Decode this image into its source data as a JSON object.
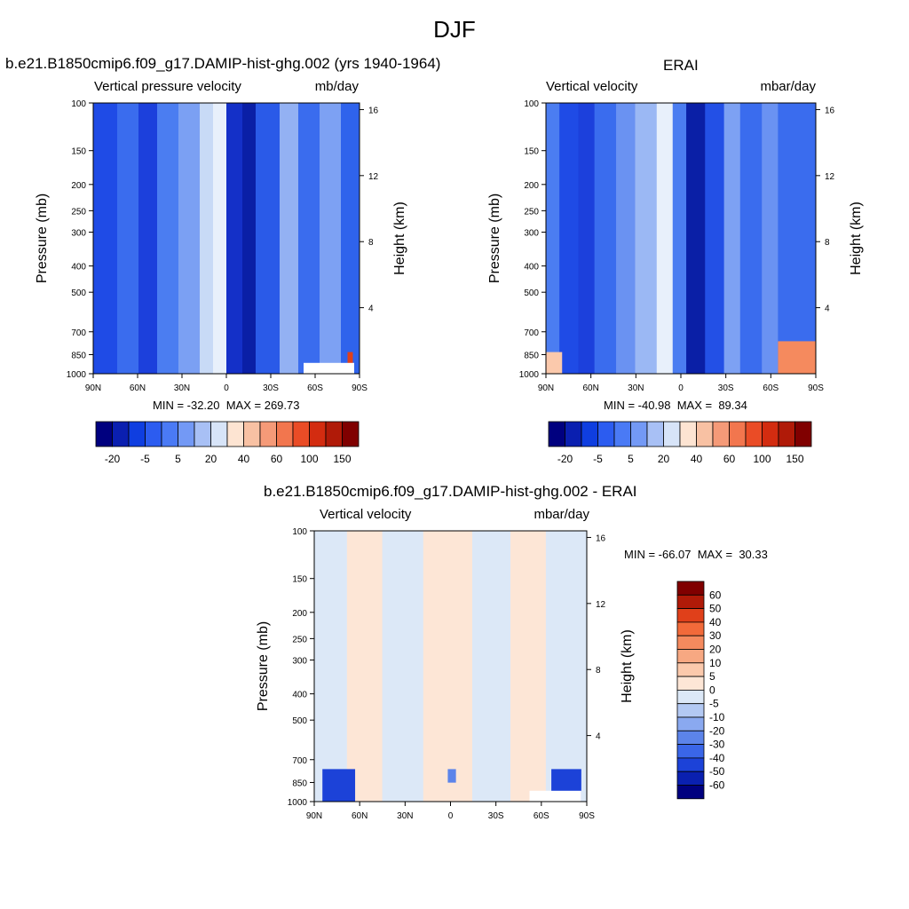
{
  "page": {
    "title": "DJF"
  },
  "chart_data": [
    {
      "type": "heatmap",
      "title": "b.e21.B1850cmip6.f09_g17.DAMIP-hist-ghg.002 (yrs 1940-1964)",
      "left_label": "Vertical pressure velocity",
      "right_label": "mb/day",
      "ylabel": "Pressure (mb)",
      "y2label": "Height (km)",
      "xticks": [
        "90N",
        "60N",
        "30N",
        "0",
        "30S",
        "60S",
        "90S"
      ],
      "yticks": [
        1000,
        850,
        700,
        500,
        400,
        300,
        250,
        200,
        150,
        100
      ],
      "y2ticks": [
        4,
        8,
        12,
        16
      ],
      "stats": "MIN = -32.20  MAX = 269.73",
      "min": -32.2,
      "max": 269.73,
      "colorbar": {
        "labels": [
          "-20",
          "-5",
          "5",
          "20",
          "40",
          "60",
          "100",
          "150"
        ],
        "colors": [
          "#00007f",
          "#0a1fb0",
          "#0f3ee0",
          "#2c5cf0",
          "#4a7af5",
          "#7399f5",
          "#a8c0f5",
          "#d7e4f8",
          "#fde4d2",
          "#f8c1a3",
          "#f59a78",
          "#f2764e",
          "#ea4c26",
          "#d32c10",
          "#b01a08",
          "#800000"
        ]
      }
    },
    {
      "type": "heatmap",
      "title": "ERAI",
      "left_label": "Vertical velocity",
      "right_label": "mbar/day",
      "ylabel": "Pressure (mb)",
      "y2label": "Height (km)",
      "xticks": [
        "90N",
        "60N",
        "30N",
        "0",
        "30S",
        "60S",
        "90S"
      ],
      "yticks": [
        1000,
        850,
        700,
        500,
        400,
        300,
        250,
        200,
        150,
        100
      ],
      "y2ticks": [
        4,
        8,
        12,
        16
      ],
      "stats": "MIN = -40.98  MAX =  89.34",
      "min": -40.98,
      "max": 89.34,
      "colorbar": {
        "labels": [
          "-20",
          "-5",
          "5",
          "20",
          "40",
          "60",
          "100",
          "150"
        ],
        "colors": [
          "#00007f",
          "#0a1fb0",
          "#0f3ee0",
          "#2c5cf0",
          "#4a7af5",
          "#7399f5",
          "#a8c0f5",
          "#d7e4f8",
          "#fde4d2",
          "#f8c1a3",
          "#f59a78",
          "#f2764e",
          "#ea4c26",
          "#d32c10",
          "#b01a08",
          "#800000"
        ]
      }
    },
    {
      "type": "heatmap",
      "title": "b.e21.B1850cmip6.f09_g17.DAMIP-hist-ghg.002 - ERAI",
      "left_label": "Vertical velocity",
      "right_label": "mbar/day",
      "ylabel": "Pressure (mb)",
      "y2label": "Height (km)",
      "xticks": [
        "90N",
        "60N",
        "30N",
        "0",
        "30S",
        "60S",
        "90S"
      ],
      "yticks": [
        1000,
        850,
        700,
        500,
        400,
        300,
        250,
        200,
        150,
        100
      ],
      "y2ticks": [
        4,
        8,
        12,
        16
      ],
      "stats": "MIN = -66.07  MAX =  30.33",
      "min": -66.07,
      "max": 30.33,
      "colorbar": {
        "labels": [
          "60",
          "50",
          "40",
          "30",
          "20",
          "10",
          "5",
          "0",
          "-5",
          "-10",
          "-20",
          "-30",
          "-40",
          "-50",
          "-60"
        ],
        "colors": [
          "#800000",
          "#b01a08",
          "#e0401a",
          "#f26a3a",
          "#f58a5e",
          "#f7a882",
          "#fbc9ac",
          "#fde6d6",
          "#dce8f7",
          "#b3c9f3",
          "#8aa9f0",
          "#5c84ea",
          "#3a66e8",
          "#1c42d8",
          "#0a20b0",
          "#00007f"
        ]
      }
    }
  ]
}
